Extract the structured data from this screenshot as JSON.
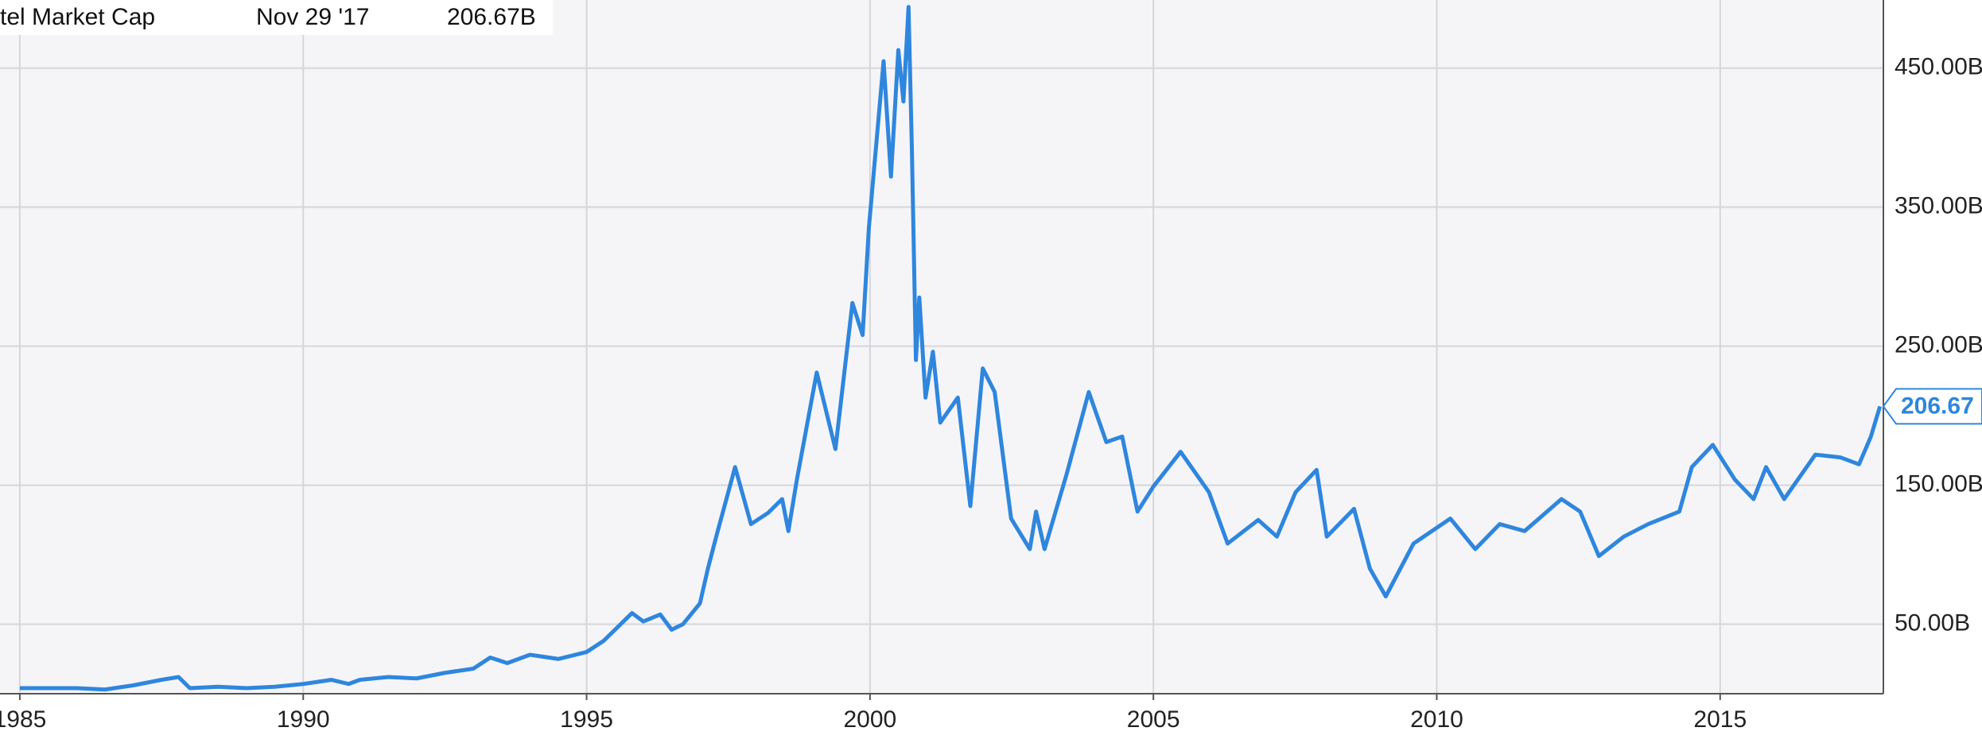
{
  "chart_data": {
    "type": "line",
    "title": "tel Market Cap",
    "current": {
      "date": "Nov 29 '17",
      "label": "206.67B",
      "marker_label": "206.67",
      "value": 206.67
    },
    "xlim": [
      1984.65,
      2017.88
    ],
    "xticks": [
      1985,
      1990,
      1995,
      2000,
      2005,
      2010,
      2015
    ],
    "ylim": [
      0,
      499
    ],
    "yticks": [
      {
        "value": 50,
        "label": "50.00B"
      },
      {
        "value": 150,
        "label": "150.00B"
      },
      {
        "value": 250,
        "label": "250.00B"
      },
      {
        "value": 350,
        "label": "350.00B"
      },
      {
        "value": 450,
        "label": "450.00B"
      }
    ],
    "grid": true,
    "series": [
      {
        "name": "Intel Market Cap",
        "color": "#2f86dd",
        "x": [
          1985.0,
          1986.0,
          1986.5,
          1987.0,
          1987.5,
          1987.8,
          1988.0,
          1988.5,
          1989.0,
          1989.5,
          1990.0,
          1990.5,
          1990.8,
          1991.0,
          1991.5,
          1992.0,
          1992.5,
          1993.0,
          1993.3,
          1993.6,
          1994.0,
          1994.5,
          1995.0,
          1995.3,
          1995.6,
          1995.8,
          1996.0,
          1996.3,
          1996.5,
          1996.7,
          1997.0,
          1997.14,
          1997.3,
          1997.62,
          1997.9,
          1998.2,
          1998.45,
          1998.56,
          1998.71,
          1999.06,
          1999.39,
          1999.69,
          1999.87,
          1999.98,
          2000.24,
          2000.37,
          2000.5,
          2000.59,
          2000.68,
          2000.74,
          2000.81,
          2000.87,
          2000.98,
          2001.11,
          2001.24,
          2001.55,
          2001.77,
          2001.99,
          2002.2,
          2002.49,
          2002.82,
          2002.93,
          2003.08,
          2003.47,
          2003.86,
          2004.17,
          2004.45,
          2004.72,
          2005.0,
          2005.48,
          2005.98,
          2006.31,
          2006.85,
          2007.18,
          2007.51,
          2007.88,
          2008.06,
          2008.54,
          2008.82,
          2009.1,
          2009.59,
          2010.24,
          2010.68,
          2011.11,
          2011.55,
          2012.2,
          2012.53,
          2012.86,
          2013.3,
          2013.73,
          2014.28,
          2014.5,
          2014.87,
          2015.26,
          2015.59,
          2015.81,
          2016.13,
          2016.68,
          2017.12,
          2017.45,
          2017.66,
          2017.82
        ],
        "values": [
          4,
          4,
          3,
          6,
          10,
          12,
          4,
          5,
          4,
          5,
          7,
          10,
          7,
          10,
          12,
          11,
          15,
          18,
          26,
          22,
          28,
          25,
          30,
          38,
          50,
          58,
          52,
          57,
          46,
          50,
          65,
          90,
          115,
          163,
          122,
          130,
          140,
          117,
          154,
          231,
          176,
          281,
          258,
          335,
          455,
          372,
          463,
          426,
          494,
          390,
          240,
          285,
          213,
          246,
          195,
          213,
          135,
          234,
          217,
          126,
          104,
          131,
          104,
          158,
          217,
          181,
          185,
          131,
          149,
          174,
          145,
          108,
          125,
          113,
          145,
          161,
          113,
          133,
          90,
          70,
          108,
          126,
          104,
          122,
          117,
          140,
          131,
          99,
          113,
          122,
          131,
          163,
          179,
          154,
          140,
          163,
          140,
          172,
          170,
          165,
          185,
          206.67
        ]
      }
    ]
  }
}
